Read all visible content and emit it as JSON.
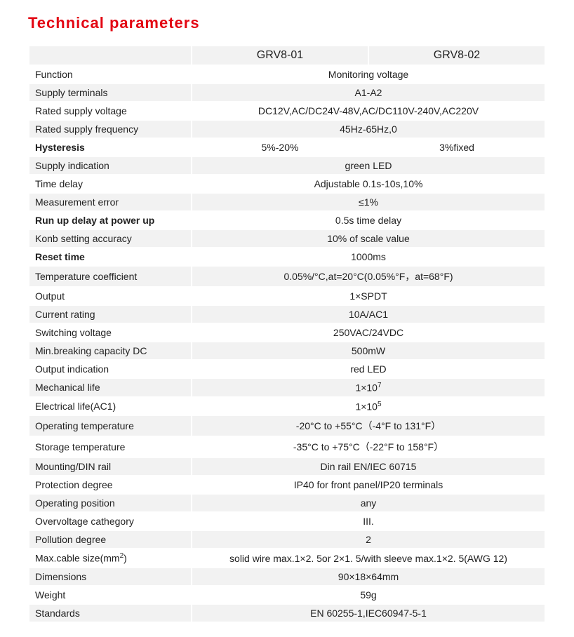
{
  "title": "Technical parameters",
  "models": {
    "a": "GRV8-01",
    "b": "GRV8-02"
  },
  "rows": {
    "function": {
      "label": "Function",
      "value": "Monitoring voltage"
    },
    "supply_terminals": {
      "label": "Supply terminals",
      "value": "A1-A2"
    },
    "rated_voltage": {
      "label": "Rated supply voltage",
      "value": "DC12V,AC/DC24V-48V,AC/DC110V-240V,AC220V"
    },
    "rated_freq": {
      "label": "Rated supply frequency",
      "value": "45Hz-65Hz,0"
    },
    "hysteresis": {
      "label": "Hysteresis",
      "a": "5%-20%",
      "b": "3%fixed"
    },
    "supply_ind": {
      "label": "Supply indication",
      "value": "green LED"
    },
    "time_delay": {
      "label": "Time delay",
      "value": "Adjustable 0.1s-10s,10%"
    },
    "meas_error": {
      "label": "Measurement error",
      "value": "≤1%"
    },
    "runup": {
      "label": "Run up delay at power up",
      "value": "0.5s time delay"
    },
    "knob": {
      "label": "Konb setting accuracy",
      "value": "10% of scale value"
    },
    "reset": {
      "label": "Reset time",
      "value": "1000ms"
    },
    "tempco": {
      "label": "Temperature coefficient",
      "value": "0.05%/°C,at=20°C(0.05%°F，at=68°F)"
    },
    "output": {
      "label": "Output",
      "value": "1×SPDT"
    },
    "current": {
      "label": "Current rating",
      "value": "10A/AC1"
    },
    "switchv": {
      "label": "Switching voltage",
      "value": "250VAC/24VDC"
    },
    "minbreak": {
      "label": "Min.breaking capacity DC",
      "value": "500mW"
    },
    "outind": {
      "label": "Output indication",
      "value": "red LED"
    },
    "mechlife": {
      "label": "Mechanical life",
      "value_html": "1×10<sup>7</sup>"
    },
    "eleclife": {
      "label": "Electrical life(AC1)",
      "value_html": "1×10<sup>5</sup>"
    },
    "optemp": {
      "label": "Operating temperature",
      "value": "-20°C to +55°C（-4°F to 131°F）"
    },
    "sttemp": {
      "label": "Storage temperature",
      "value": "-35°C to +75°C（-22°F to 158°F）"
    },
    "mounting": {
      "label": "Mounting/DIN rail",
      "value": "Din rail EN/IEC 60715"
    },
    "protdeg": {
      "label": "Protection degree",
      "value": "IP40 for front panel/IP20 terminals"
    },
    "oppos": {
      "label": "Operating position",
      "value": "any"
    },
    "ovcat": {
      "label": "Overvoltage cathegory",
      "value": "III."
    },
    "polldeg": {
      "label": "Pollution degree",
      "value": "2"
    },
    "maxcable": {
      "label_html": "Max.cable size(mm<sup>2</sup>)",
      "value": "solid wire max.1×2. 5or 2×1. 5/with  sleeve max.1×2. 5(AWG 12)"
    },
    "dims": {
      "label": "Dimensions",
      "value": "90×18×64mm"
    },
    "weight": {
      "label": "Weight",
      "value": "59g"
    },
    "standards": {
      "label": "Standards",
      "value": "EN 60255-1,IEC60947-5-1"
    }
  }
}
